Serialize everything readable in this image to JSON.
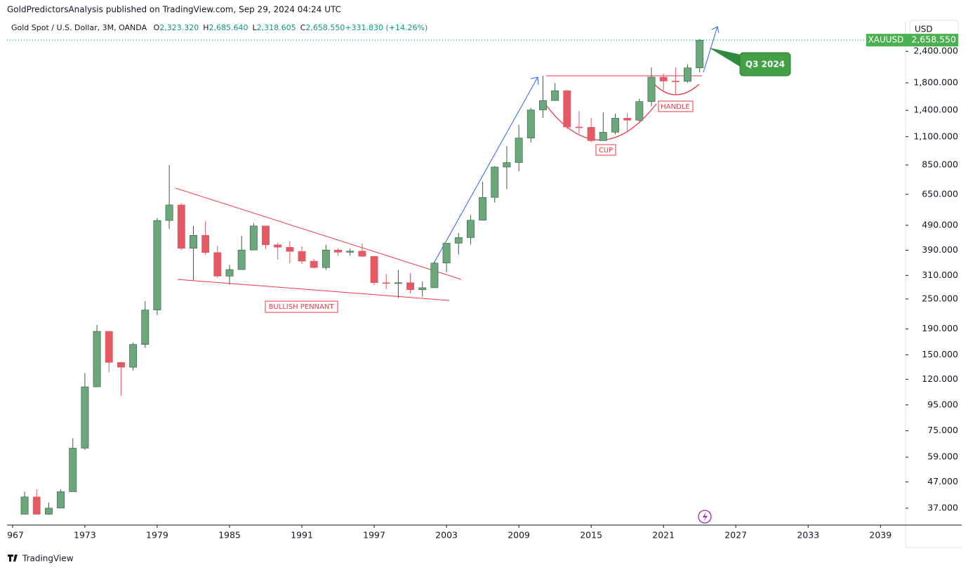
{
  "chart_data": {
    "type": "candlestick",
    "published": "GoldPredictorsAnalysis published on TradingView.com, Sep 29, 2024 04:24 UTC",
    "title": "Gold Spot / U.S. Dollar, 3M, OANDA",
    "legend": [
      {
        "key": "O",
        "value": "2,323.320"
      },
      {
        "key": "H",
        "value": "2,685.640"
      },
      {
        "key": "L",
        "value": "2,318.605"
      },
      {
        "key": "C",
        "value": "2,658.550"
      },
      {
        "key": "",
        "value": "+331.830 (+14.26%)"
      }
    ],
    "currency": "USD",
    "symbol": "XAUUSD",
    "last_price": {
      "value": 2658.55,
      "label": "2,658.550"
    },
    "annotations": [
      "BULLISH PENNANT",
      "CUP",
      "HANDLE",
      "Q3 2024"
    ],
    "footer": "TradingView",
    "log_scale": true,
    "up_color": "#6aa77a",
    "down_color": "#e35a64",
    "x": [
      1968,
      1969,
      1970,
      1971,
      1972,
      1973,
      1974,
      1975,
      1976,
      1977,
      1978,
      1979,
      1980,
      1981,
      1982,
      1983,
      1984,
      1985,
      1986,
      1987,
      1988,
      1989,
      1990,
      1991,
      1992,
      1993,
      1994,
      1995,
      1996,
      1997,
      1998,
      1999,
      2000,
      2001,
      2002,
      2003,
      2004,
      2005,
      2006,
      2007,
      2008,
      2009,
      2010,
      2011,
      2012,
      2013,
      2014,
      2015,
      2016,
      2017,
      2018,
      2019,
      2020,
      2021,
      2022,
      2023,
      2024
    ],
    "open": [
      35,
      41,
      35,
      37,
      43,
      64,
      112,
      186,
      140,
      134,
      165,
      226,
      512,
      590,
      397,
      447,
      382,
      308,
      327,
      391,
      487,
      410,
      401,
      386,
      353,
      333,
      391,
      383,
      387,
      369,
      290,
      288,
      290,
      272,
      277,
      347,
      416,
      438,
      513,
      632,
      834,
      869,
      1087,
      1405,
      1531,
      1675,
      1202,
      1199,
      1061,
      1146,
      1303,
      1279,
      1517,
      1895,
      1829,
      1824,
      2063
    ],
    "high": [
      43,
      44,
      39,
      44,
      70,
      127,
      197,
      186,
      141,
      168,
      245,
      524,
      850,
      600,
      488,
      510,
      406,
      341,
      445,
      500,
      485,
      418,
      424,
      404,
      360,
      410,
      396,
      396,
      415,
      367,
      314,
      326,
      317,
      293,
      350,
      417,
      456,
      538,
      730,
      842,
      1011,
      1226,
      1431,
      1921,
      1796,
      1694,
      1392,
      1307,
      1375,
      1358,
      1366,
      1557,
      2075,
      1959,
      2070,
      2135,
      2685
    ],
    "low": [
      35,
      35,
      34.8,
      37,
      43,
      63,
      115,
      128,
      103,
      130,
      160,
      216,
      474,
      391,
      297,
      374,
      303,
      285,
      326,
      390,
      395,
      358,
      346,
      344,
      330,
      326,
      370,
      372,
      367,
      283,
      273,
      252,
      263,
      255,
      277,
      319,
      375,
      411,
      524,
      603,
      681,
      802,
      1045,
      1308,
      1527,
      1180,
      1131,
      1046,
      1061,
      1123,
      1160,
      1266,
      1451,
      1677,
      1615,
      1804,
      1984
    ],
    "close": [
      41,
      35,
      37,
      43,
      64,
      112,
      186,
      140,
      134,
      165,
      226,
      512,
      590,
      397,
      447,
      382,
      308,
      327,
      391,
      487,
      410,
      401,
      386,
      353,
      333,
      391,
      383,
      387,
      369,
      290,
      288,
      290,
      272,
      277,
      347,
      416,
      438,
      513,
      632,
      834,
      869,
      1087,
      1405,
      1531,
      1675,
      1202,
      1199,
      1061,
      1146,
      1303,
      1279,
      1517,
      1895,
      1829,
      1824,
      2063,
      2658
    ],
    "xlim": [
      1966.54,
      2041.08
    ],
    "xticks": [
      {
        "value": 1967,
        "label": "967"
      },
      1973,
      1979,
      1985,
      1991,
      1997,
      2003,
      2009,
      2015,
      2021,
      2027,
      2033,
      2039
    ],
    "ylim": [
      31.7,
      3164
    ],
    "yticks": [
      {
        "value": 37,
        "label": "37.000"
      },
      {
        "value": 47,
        "label": "47.000"
      },
      {
        "value": 59,
        "label": "59.000"
      },
      {
        "value": 75,
        "label": "75.000"
      },
      {
        "value": 95,
        "label": "95.000"
      },
      {
        "value": 120,
        "label": "120.000"
      },
      {
        "value": 150,
        "label": "150.000"
      },
      {
        "value": 190,
        "label": "190.000"
      },
      {
        "value": 250,
        "label": "250.000"
      },
      {
        "value": 310,
        "label": "310.000"
      },
      {
        "value": 390,
        "label": "390.000"
      },
      {
        "value": 490,
        "label": "490.000"
      },
      {
        "value": 650,
        "label": "650.000"
      },
      {
        "value": 850,
        "label": "850.000"
      },
      {
        "value": 1100,
        "label": "1,100.000"
      },
      {
        "value": 1400,
        "label": "1,400.000"
      },
      {
        "value": 1800,
        "label": "1,800.000"
      },
      {
        "value": 2400,
        "label": "2,400.000"
      }
    ]
  }
}
